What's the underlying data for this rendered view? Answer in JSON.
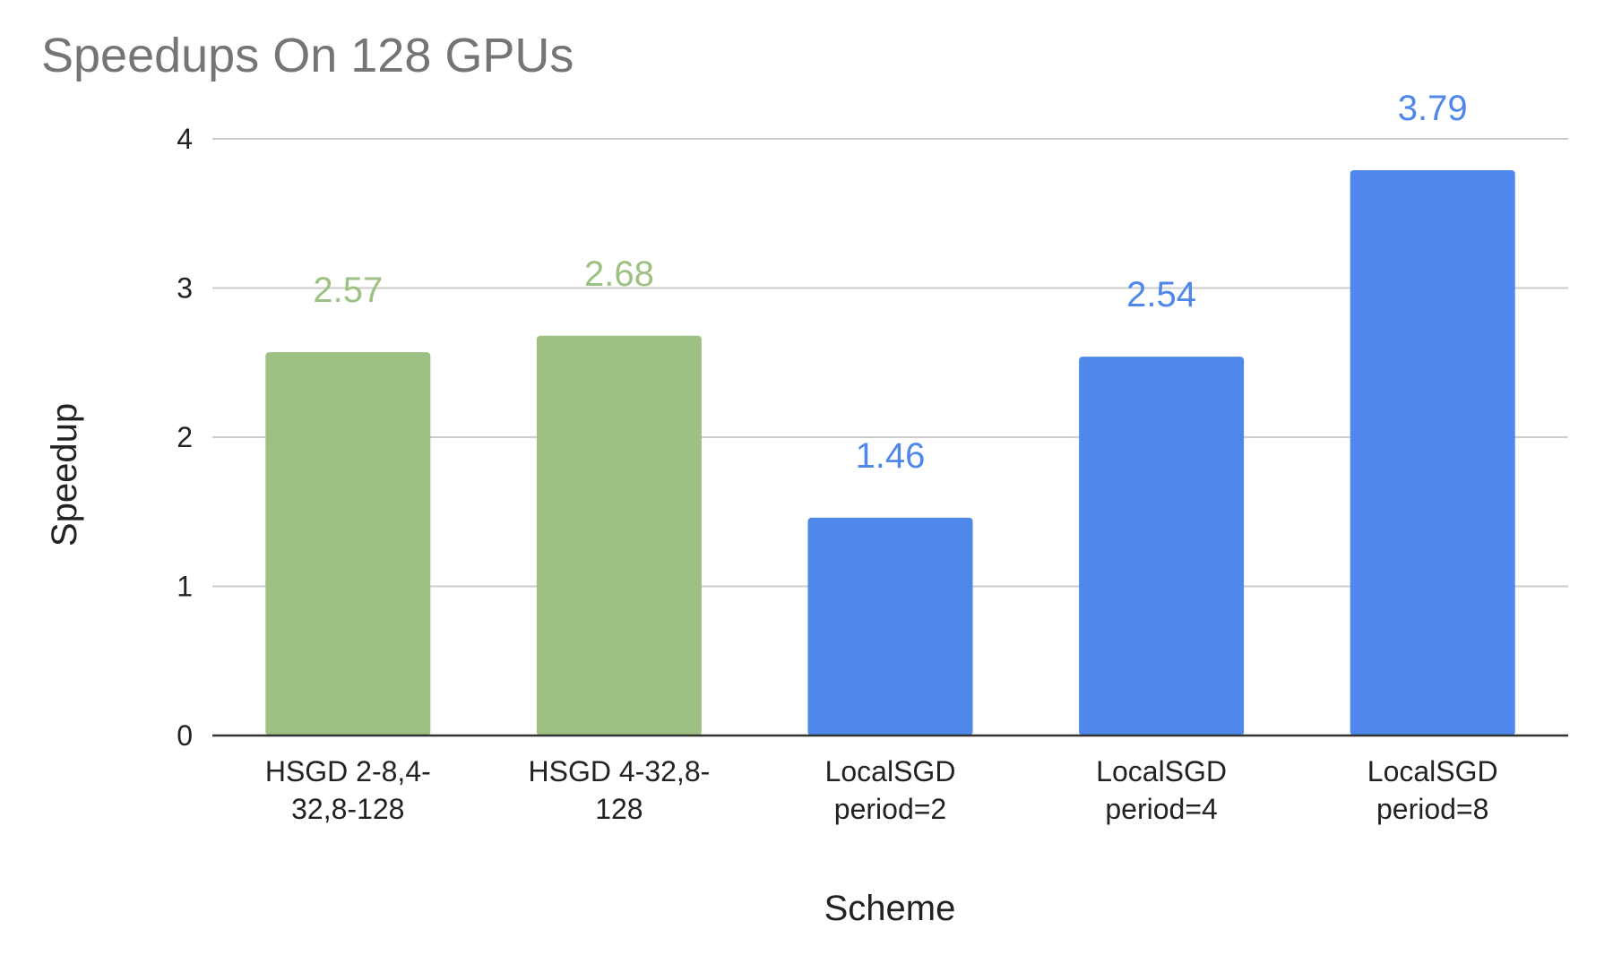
{
  "chart_data": {
    "type": "bar",
    "title": "Speedups On 128 GPUs",
    "xlabel": "Scheme",
    "ylabel": "Speedup",
    "ylim": [
      0,
      4
    ],
    "yticks": [
      "0",
      "1",
      "2",
      "3",
      "4"
    ],
    "grid": true,
    "legend": "none",
    "categories": [
      [
        "HSGD 2-8,4-",
        "32,8-128"
      ],
      [
        "HSGD 4-32,8-",
        "128"
      ],
      [
        "LocalSGD",
        "period=2"
      ],
      [
        "LocalSGD",
        "period=4"
      ],
      [
        "LocalSGD",
        "period=8"
      ]
    ],
    "values": [
      2.57,
      2.68,
      1.46,
      2.54,
      3.79
    ],
    "data_labels": [
      "2.57",
      "2.68",
      "1.46",
      "2.54",
      "3.79"
    ],
    "bar_colors": [
      "#9dc183",
      "#9dc183",
      "#4f87ea",
      "#4f87ea",
      "#4f87ea"
    ],
    "label_colors": [
      "#9dc183",
      "#9dc183",
      "#4f87ea",
      "#4f87ea",
      "#4f87ea"
    ]
  }
}
